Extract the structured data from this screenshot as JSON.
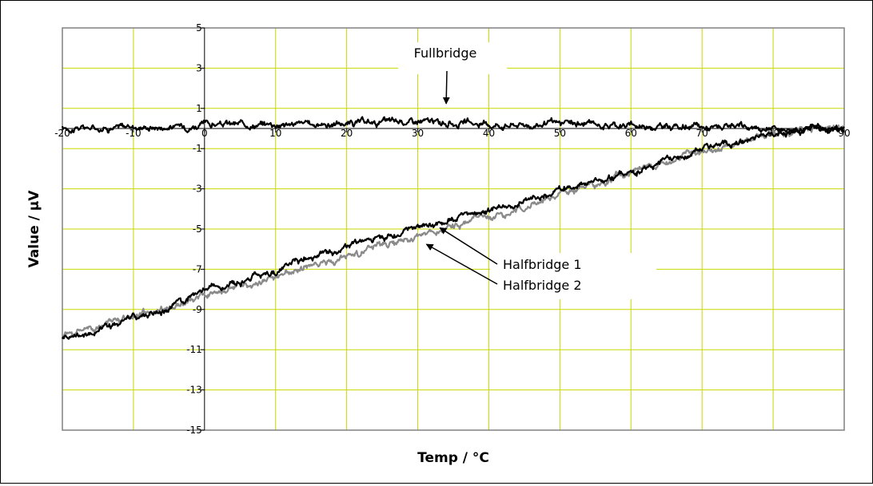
{
  "chart_data": {
    "type": "line",
    "title": "",
    "xlabel": "Temp / °C",
    "ylabel": "Value / µV",
    "xlim": [
      -20,
      90
    ],
    "ylim": [
      -15,
      5
    ],
    "x_ticks": [
      -20,
      -10,
      0,
      10,
      20,
      30,
      40,
      50,
      60,
      70,
      80,
      90
    ],
    "y_ticks": [
      5,
      3,
      1,
      -1,
      -3,
      -5,
      -7,
      -9,
      -11,
      -13,
      -15
    ],
    "grid": true,
    "colors": {
      "gridline": "#c8d800",
      "black_series": "#000000",
      "gray_series": "#8a8a8a",
      "plot_border": "#808080"
    },
    "series": [
      {
        "name": "Fullbridge",
        "color": "#000000",
        "x": [
          -20,
          -15,
          -10,
          -5,
          0,
          5,
          10,
          15,
          20,
          25,
          30,
          35,
          40,
          45,
          50,
          55,
          60,
          65,
          70,
          75,
          80,
          85,
          90
        ],
        "y": [
          0.0,
          0.05,
          0.1,
          0.08,
          0.2,
          0.2,
          0.25,
          0.2,
          0.25,
          0.3,
          0.35,
          0.25,
          0.2,
          0.2,
          0.22,
          0.22,
          0.15,
          0.12,
          0.05,
          0.02,
          0.0,
          0.0,
          0.05
        ]
      },
      {
        "name": "Halfbridge 1",
        "color": "#000000",
        "x": [
          -20,
          -15,
          -10,
          -5,
          0,
          5,
          10,
          15,
          20,
          25,
          30,
          35,
          40,
          45,
          50,
          55,
          60,
          65,
          70,
          75,
          80,
          85,
          90
        ],
        "y": [
          -10.5,
          -10.0,
          -9.4,
          -9.0,
          -8.0,
          -7.6,
          -7.1,
          -6.4,
          -5.9,
          -5.4,
          -5.0,
          -4.5,
          -4.1,
          -3.6,
          -3.1,
          -2.6,
          -2.1,
          -1.6,
          -1.1,
          -0.6,
          -0.2,
          0.0,
          -0.1
        ]
      },
      {
        "name": "Halfbridge 2",
        "color": "#8a8a8a",
        "x": [
          -20,
          -15,
          -10,
          -5,
          0,
          5,
          10,
          15,
          20,
          25,
          30,
          35,
          40,
          45,
          50,
          55,
          60,
          65,
          70,
          75,
          80,
          85,
          90
        ],
        "y": [
          -10.3,
          -9.8,
          -9.3,
          -8.9,
          -8.3,
          -7.9,
          -7.4,
          -6.8,
          -6.4,
          -5.9,
          -5.4,
          -4.9,
          -4.4,
          -3.9,
          -3.3,
          -2.8,
          -2.2,
          -1.7,
          -1.2,
          -0.7,
          -0.3,
          0.0,
          0.1
        ]
      }
    ],
    "annotations": [
      {
        "text": "Fullbridge",
        "target_series": "Fullbridge",
        "points_to": {
          "x": 34,
          "y": 0.2
        }
      },
      {
        "text": "Halfbridge 1",
        "target_series": "Halfbridge 1",
        "points_to": {
          "x": 33,
          "y": -4.7
        }
      },
      {
        "text": "Halfbridge 2",
        "target_series": "Halfbridge 2",
        "points_to": {
          "x": 31,
          "y": -5.6
        }
      }
    ]
  }
}
